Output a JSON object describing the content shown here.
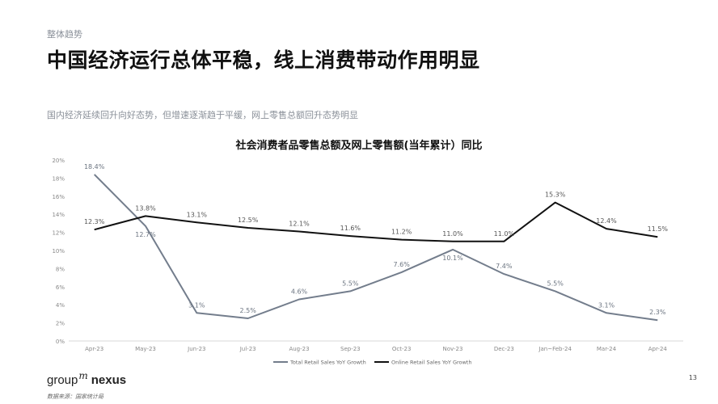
{
  "page": {
    "section_label": "整体趋势",
    "title": "中国经济运行总体平稳，线上消费带动作用明显",
    "subtitle": "国内经济延续回升向好态势，但增速逐渐趋于平缓，网上零售总额回升态势明显",
    "page_number": "13",
    "source": "数据来源：国家统计局",
    "brand": {
      "name": "group",
      "superscript": "m",
      "suffix": "nexus"
    }
  },
  "colors": {
    "total": "#737d8c",
    "online": "#111111",
    "axis": "#d9d9d9",
    "tick_text": "#888888"
  },
  "chart_data": {
    "type": "line",
    "title": "社会消费者品零售总额及网上零售额(当年累计）同比",
    "categories": [
      "Apr-23",
      "May-23",
      "Jun-23",
      "Jul-23",
      "Aug-23",
      "Sep-23",
      "Oct-23",
      "Nov-23",
      "Dec-23",
      "Jan~Feb-24",
      "Mar-24",
      "Apr-24"
    ],
    "ylim": [
      0,
      20
    ],
    "yticks": [
      0,
      2,
      4,
      6,
      8,
      10,
      12,
      14,
      16,
      18,
      20
    ],
    "ytick_labels": [
      "0%",
      "2%",
      "4%",
      "6%",
      "8%",
      "10%",
      "12%",
      "14%",
      "16%",
      "18%",
      "20%"
    ],
    "grid": false,
    "legend_position": "bottom",
    "series": [
      {
        "name": "Total Retail Sales YoY Growth",
        "color": "#737d8c",
        "values": [
          18.4,
          12.7,
          3.1,
          2.5,
          4.6,
          5.5,
          7.6,
          10.1,
          7.4,
          5.5,
          3.1,
          2.3
        ],
        "labels": [
          "18.4%",
          "12.7%",
          "3.1%",
          "2.5%",
          "4.6%",
          "5.5%",
          "7.6%",
          "10.1%",
          "7.4%",
          "5.5%",
          "3.1%",
          "2.3%"
        ]
      },
      {
        "name": "Online Retail Sales YoY Growth",
        "color": "#111111",
        "values": [
          12.3,
          13.8,
          13.1,
          12.5,
          12.1,
          11.6,
          11.2,
          11.0,
          11.0,
          15.3,
          12.4,
          11.5
        ],
        "labels": [
          "12.3%",
          "13.8%",
          "13.1%",
          "12.5%",
          "12.1%",
          "11.6%",
          "11.2%",
          "11.0%",
          "11.0%",
          "15.3%",
          "12.4%",
          "11.5%"
        ]
      }
    ]
  }
}
